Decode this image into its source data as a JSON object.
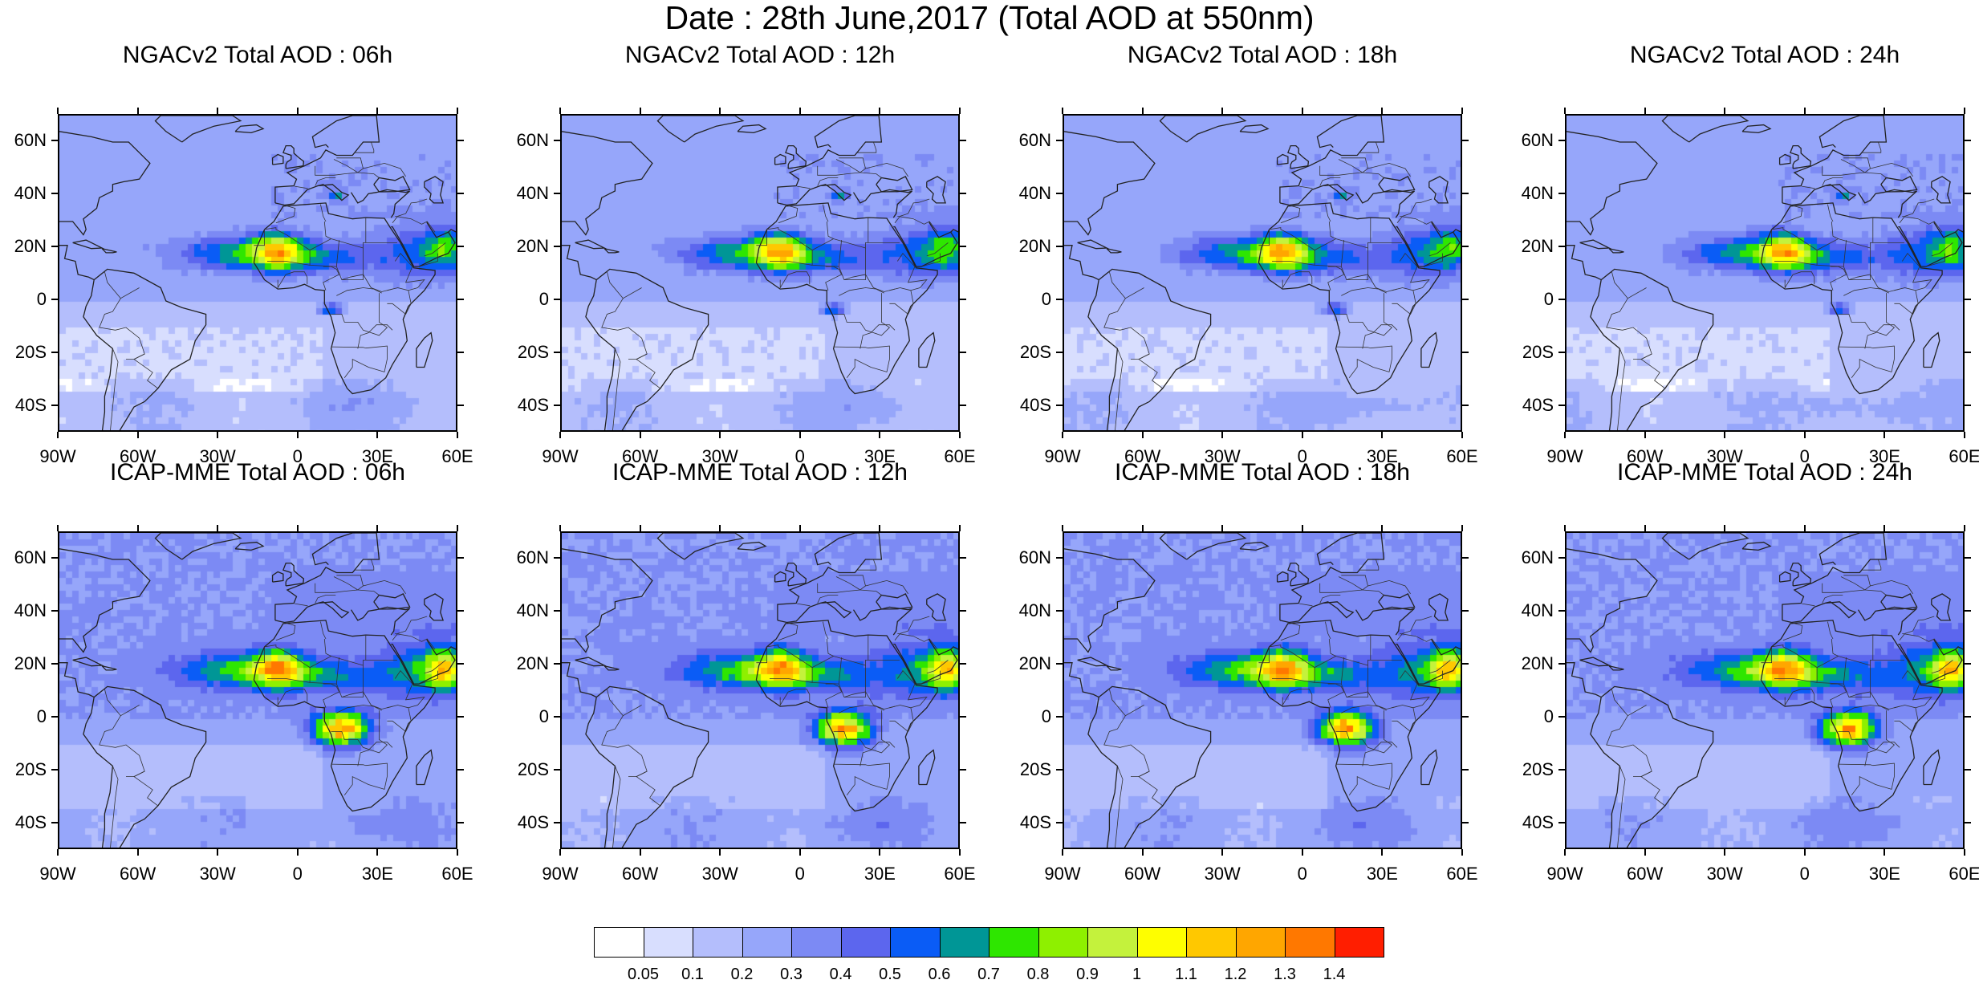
{
  "page_title": "Date : 28th June,2017 (Total AOD at 550nm)",
  "map_axes": {
    "lat_labels": [
      "60N",
      "40N",
      "20N",
      "0",
      "20S",
      "40S"
    ],
    "lat_values": [
      60,
      40,
      20,
      0,
      -20,
      -40
    ],
    "lon_labels": [
      "90W",
      "60W",
      "30W",
      "0",
      "30E",
      "60E"
    ],
    "lon_values": [
      -90,
      -60,
      -30,
      0,
      30,
      60
    ],
    "lat_range": [
      -50,
      70
    ],
    "lon_range": [
      -90,
      60
    ]
  },
  "panels": [
    {
      "title": "NGACv2 Total AOD : 06h",
      "model": "NGACv2",
      "hour": "06h"
    },
    {
      "title": "NGACv2 Total AOD : 12h",
      "model": "NGACv2",
      "hour": "12h"
    },
    {
      "title": "NGACv2 Total AOD : 18h",
      "model": "NGACv2",
      "hour": "18h"
    },
    {
      "title": "NGACv2 Total AOD : 24h",
      "model": "NGACv2",
      "hour": "24h"
    },
    {
      "title": "ICAP-MME Total AOD : 06h",
      "model": "ICAP-MME",
      "hour": "06h"
    },
    {
      "title": "ICAP-MME Total AOD : 12h",
      "model": "ICAP-MME",
      "hour": "12h"
    },
    {
      "title": "ICAP-MME Total AOD : 18h",
      "model": "ICAP-MME",
      "hour": "18h"
    },
    {
      "title": "ICAP-MME Total AOD : 24h",
      "model": "ICAP-MME",
      "hour": "24h"
    }
  ],
  "colorbar": {
    "labels": [
      "0.05",
      "0.1",
      "0.2",
      "0.3",
      "0.4",
      "0.5",
      "0.6",
      "0.7",
      "0.8",
      "0.9",
      "1",
      "1.1",
      "1.2",
      "1.3",
      "1.4"
    ],
    "colors": [
      "#ffffff",
      "#d8defe",
      "#b4befc",
      "#96a6fa",
      "#7c8af4",
      "#5c66ee",
      "#0a5cf6",
      "#009696",
      "#2ee600",
      "#8ef000",
      "#c4f23c",
      "#fefe00",
      "#ffc800",
      "#ffa600",
      "#ff7800",
      "#ff1e00"
    ]
  }
}
